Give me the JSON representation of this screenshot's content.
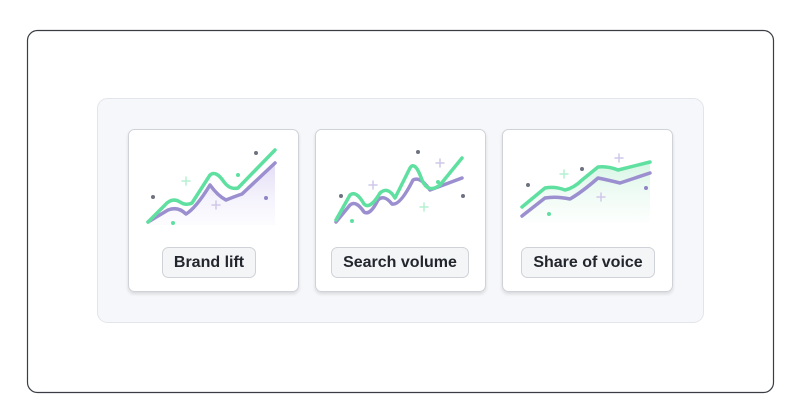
{
  "cards": [
    {
      "label": "Brand lift"
    },
    {
      "label": "Search volume"
    },
    {
      "label": "Share of voice"
    }
  ]
}
